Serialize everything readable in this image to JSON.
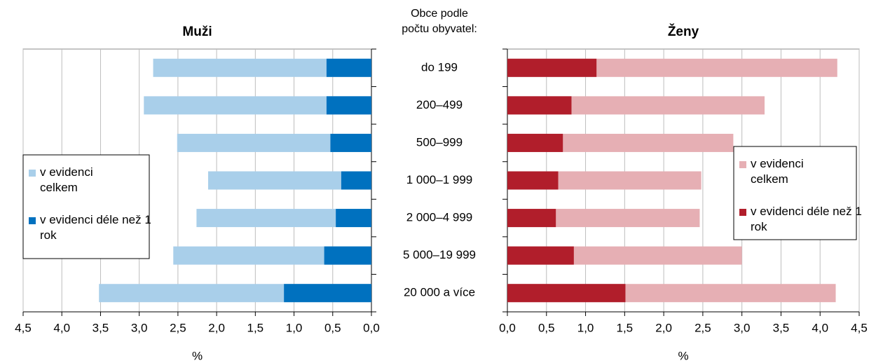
{
  "chart_data": [
    {
      "type": "bar",
      "orientation": "horizontal",
      "title": "Muži",
      "xlabel": "%",
      "category_title": "Obce podle počtu obyvatel:",
      "categories": [
        "do 199",
        "200–499",
        "500–999",
        "1 000–1 999",
        "2 000–4 999",
        "5 000–19 999",
        "20 000 a více"
      ],
      "series": [
        {
          "name": "v evidenci celkem",
          "color": "#a9cfea",
          "values": [
            2.82,
            2.94,
            2.51,
            2.11,
            2.26,
            2.56,
            3.52
          ]
        },
        {
          "name": "v evidenci déle než 1 rok",
          "color": "#0071bf",
          "values": [
            0.58,
            0.58,
            0.53,
            0.39,
            0.46,
            0.61,
            1.13
          ]
        }
      ],
      "xlim": [
        4.5,
        0
      ],
      "xticks": [
        {
          "value": 4.5,
          "label": "4,5"
        },
        {
          "value": 4.0,
          "label": "4,0"
        },
        {
          "value": 3.5,
          "label": "3,5"
        },
        {
          "value": 3.0,
          "label": "3,0"
        },
        {
          "value": 2.5,
          "label": "2,5"
        },
        {
          "value": 2.0,
          "label": "2,0"
        },
        {
          "value": 1.5,
          "label": "1,5"
        },
        {
          "value": 1.0,
          "label": "1,0"
        },
        {
          "value": 0.5,
          "label": "0,5"
        },
        {
          "value": 0,
          "label": "0,0"
        }
      ],
      "grid": true,
      "legend": "left"
    },
    {
      "type": "bar",
      "orientation": "horizontal",
      "title": "Ženy",
      "xlabel": "%",
      "series": [
        {
          "name": "v evidenci celkem",
          "color": "#e6afb4",
          "values": [
            4.22,
            3.29,
            2.89,
            2.48,
            2.46,
            3.0,
            4.2
          ]
        },
        {
          "name": "v evidenci déle než 1 rok",
          "color": "#b11e2b",
          "values": [
            1.14,
            0.82,
            0.71,
            0.65,
            0.62,
            0.85,
            1.51
          ]
        }
      ],
      "xlim": [
        0,
        4.5
      ],
      "xticks": [
        {
          "value": 0,
          "label": "0,0"
        },
        {
          "value": 0.5,
          "label": "0,5"
        },
        {
          "value": 1.0,
          "label": "1,0"
        },
        {
          "value": 1.5,
          "label": "1,5"
        },
        {
          "value": 2.0,
          "label": "2,0"
        },
        {
          "value": 2.5,
          "label": "2,5"
        },
        {
          "value": 3.0,
          "label": "3,0"
        },
        {
          "value": 3.5,
          "label": "3,5"
        },
        {
          "value": 4.0,
          "label": "4,0"
        },
        {
          "value": 4.5,
          "label": "4,5"
        }
      ],
      "grid": true,
      "legend": "right"
    }
  ]
}
